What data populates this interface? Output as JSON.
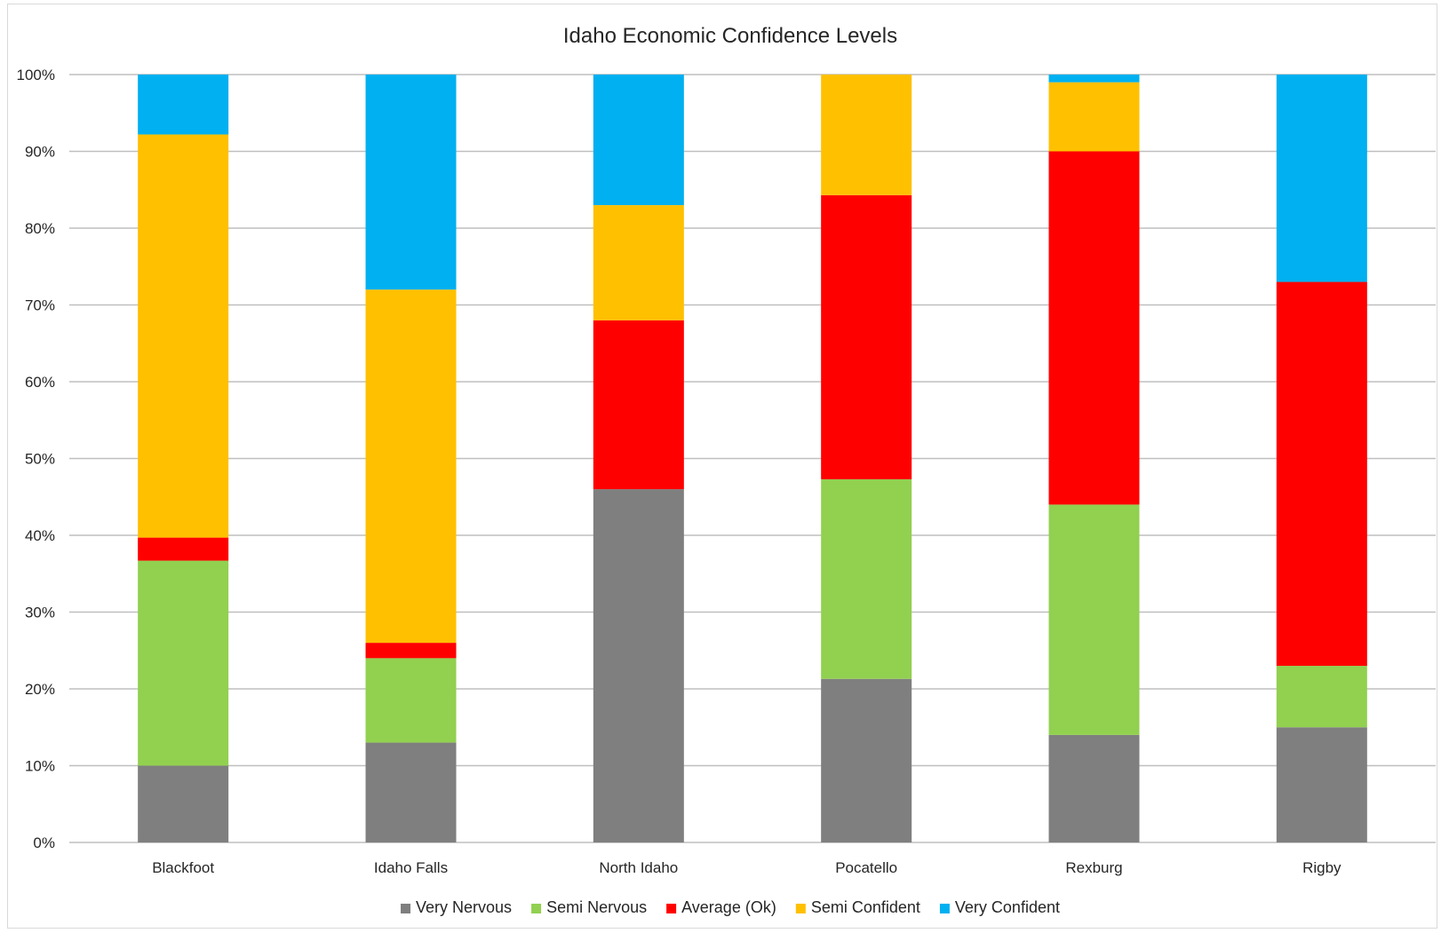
{
  "chart_data": {
    "type": "bar",
    "stacked": true,
    "title": "Idaho Economic Confidence Levels",
    "xlabel": "",
    "ylabel": "",
    "ylim": [
      0,
      100
    ],
    "yticks": [
      "0%",
      "10%",
      "20%",
      "30%",
      "40%",
      "50%",
      "60%",
      "70%",
      "80%",
      "90%",
      "100%"
    ],
    "grid": true,
    "legend_position": "bottom",
    "categories": [
      "Blackfoot",
      "Idaho Falls",
      "North Idaho",
      "Pocatello",
      "Rexburg",
      "Rigby"
    ],
    "series": [
      {
        "name": "Very Nervous",
        "color": "#7f7f7f",
        "values": [
          10,
          13,
          46,
          21.3,
          14,
          15
        ]
      },
      {
        "name": "Semi Nervous",
        "color": "#92d050",
        "values": [
          26.7,
          11,
          0,
          26,
          30,
          8
        ]
      },
      {
        "name": "Average (Ok)",
        "color": "#ff0000",
        "values": [
          3,
          2,
          22,
          37,
          46,
          50
        ]
      },
      {
        "name": "Semi Confident",
        "color": "#ffc000",
        "values": [
          52.5,
          46,
          15,
          15.7,
          9,
          0
        ]
      },
      {
        "name": "Very Confident",
        "color": "#00b0f0",
        "values": [
          7.8,
          28,
          17,
          0,
          1,
          27
        ]
      }
    ]
  }
}
